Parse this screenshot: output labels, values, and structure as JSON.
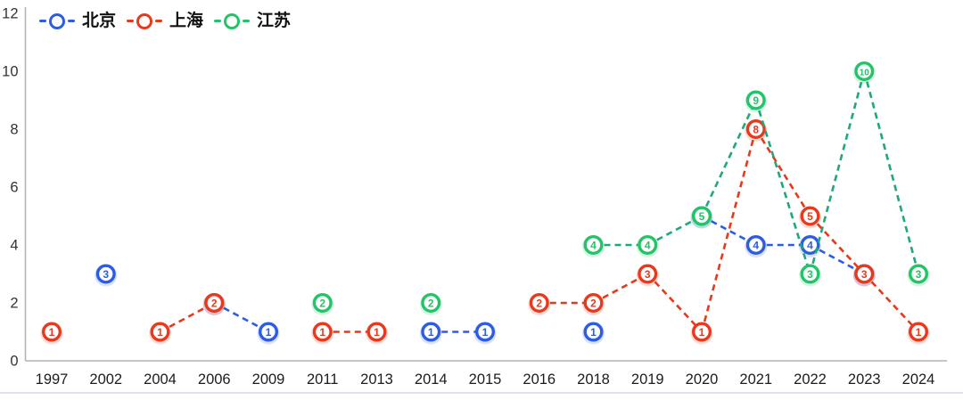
{
  "chart_data": {
    "type": "line",
    "title": "",
    "xlabel": "",
    "ylabel": "",
    "ylim": [
      0,
      12
    ],
    "yticks": [
      0,
      2,
      4,
      6,
      8,
      10,
      12
    ],
    "grid": false,
    "legend_position": "top-left",
    "line_style": "dashed",
    "categories": [
      "1997",
      "2002",
      "2004",
      "2006",
      "2009",
      "2011",
      "2013",
      "2014",
      "2015",
      "2016",
      "2018",
      "2019",
      "2020",
      "2021",
      "2022",
      "2023",
      "2024"
    ],
    "series": [
      {
        "name": "北京",
        "slug": "beijing",
        "color": "#2d5ce4",
        "line_color": "#2d5ce4",
        "values": [
          null,
          3,
          null,
          2,
          1,
          null,
          null,
          1,
          1,
          null,
          1,
          null,
          5,
          4,
          4,
          3,
          null
        ]
      },
      {
        "name": "上海",
        "slug": "shanghai",
        "color": "#e8391d",
        "line_color": "#e8391d",
        "values": [
          1,
          null,
          1,
          2,
          null,
          1,
          1,
          null,
          null,
          2,
          2,
          3,
          1,
          8,
          5,
          3,
          1
        ]
      },
      {
        "name": "江苏",
        "slug": "jiangsu",
        "color": "#22c468",
        "line_color": "#1fa87a",
        "values": [
          null,
          null,
          null,
          null,
          null,
          2,
          null,
          2,
          null,
          null,
          4,
          4,
          5,
          9,
          3,
          10,
          3
        ]
      }
    ]
  },
  "style": {
    "axis_color": "#b3b3b3",
    "y_tick_color": "#333333",
    "x_tick_color": "#1c1c1c",
    "background": "#ffffff",
    "divider_color": "#dde3ec"
  }
}
